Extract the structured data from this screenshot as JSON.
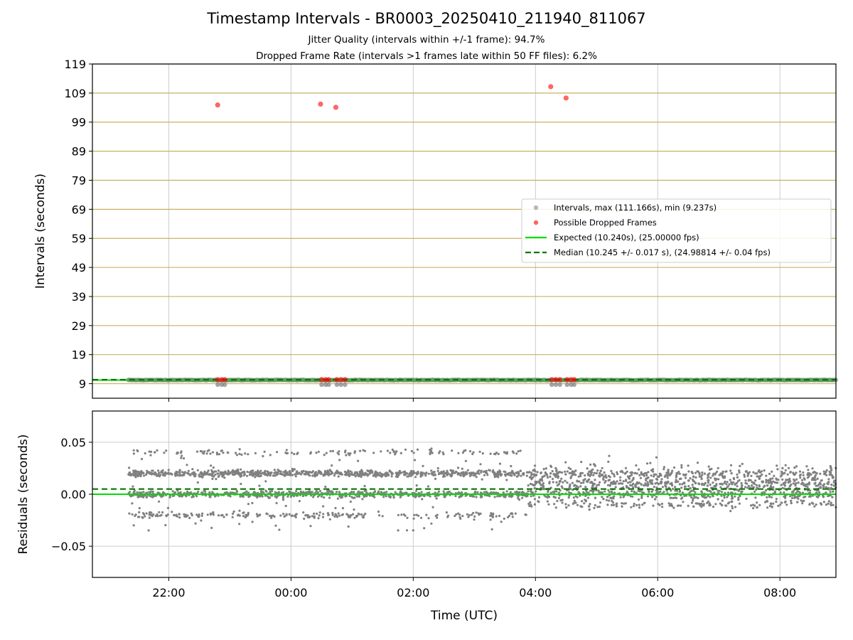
{
  "title": "Timestamp Intervals - BR0003_20250410_211940_811067",
  "subtitle1": "Jitter Quality (intervals within +/-1 frame): 94.7%",
  "subtitle2": "Dropped Frame Rate (intervals >1 frames late within 50 FF files): 6.2%",
  "colors": {
    "intervals": "#808080",
    "dropped": "#ff0000",
    "expected": "#00dd00",
    "median": "#007700",
    "hgrid_top": "#c8b060",
    "grid": "#cccccc"
  },
  "chart_data": [
    {
      "type": "scatter",
      "xlabel": "Time (UTC)",
      "ylabel": "Intervals (seconds)",
      "xlim": [
        "2025-04-10 20:45",
        "2025-04-11 08:55"
      ],
      "ylim": [
        4,
        119
      ],
      "yticks": [
        9,
        19,
        29,
        39,
        49,
        59,
        69,
        79,
        89,
        99,
        109,
        119
      ],
      "xticks": [
        "22:00",
        "00:00",
        "02:00",
        "04:00",
        "06:00",
        "08:00"
      ],
      "grid": true,
      "legend_position": "center-right",
      "series": [
        {
          "name": "Intervals, max (111.166s), min (9.237s)",
          "style": "scatter",
          "color": "#808080",
          "baseline_value": 10.24,
          "time_range": [
            "2025-04-10 21:20",
            "2025-04-11 08:55"
          ]
        },
        {
          "name": "Possible Dropped Frames",
          "style": "scatter",
          "color": "#ff0000",
          "points": [
            {
              "x": "2025-04-10 22:48",
              "y": 104.9
            },
            {
              "x": "2025-04-11 00:29",
              "y": 105.2
            },
            {
              "x": "2025-04-11 00:44",
              "y": 104.1
            },
            {
              "x": "2025-04-11 04:15",
              "y": 111.2
            },
            {
              "x": "2025-04-11 04:30",
              "y": 107.3
            },
            {
              "x": "2025-04-10 22:48",
              "y": 10.4
            },
            {
              "x": "2025-04-10 22:52",
              "y": 10.4
            },
            {
              "x": "2025-04-10 22:55",
              "y": 10.4
            },
            {
              "x": "2025-04-11 00:30",
              "y": 10.4
            },
            {
              "x": "2025-04-11 00:34",
              "y": 10.4
            },
            {
              "x": "2025-04-11 00:37",
              "y": 10.4
            },
            {
              "x": "2025-04-11 00:45",
              "y": 10.4
            },
            {
              "x": "2025-04-11 00:49",
              "y": 10.4
            },
            {
              "x": "2025-04-11 00:53",
              "y": 10.4
            },
            {
              "x": "2025-04-11 04:16",
              "y": 10.4
            },
            {
              "x": "2025-04-11 04:20",
              "y": 10.4
            },
            {
              "x": "2025-04-11 04:24",
              "y": 10.4
            },
            {
              "x": "2025-04-11 04:31",
              "y": 10.4
            },
            {
              "x": "2025-04-11 04:35",
              "y": 10.4
            },
            {
              "x": "2025-04-11 04:38",
              "y": 10.4
            }
          ]
        },
        {
          "name": "Expected (10.240s), (25.00000 fps)",
          "style": "line",
          "color": "#00dd00",
          "y": 10.24
        },
        {
          "name": "Median (10.245 +/- 0.017 s), (24.98814 +/- 0.04 fps)",
          "style": "dashed",
          "color": "#007700",
          "y": 10.245
        }
      ]
    },
    {
      "type": "scatter",
      "xlabel": "Time (UTC)",
      "ylabel": "Residuals (seconds)",
      "xlim": [
        "2025-04-10 20:45",
        "2025-04-11 08:55"
      ],
      "ylim": [
        -0.08,
        0.08
      ],
      "yticks": [
        0.05,
        0.0,
        -0.05
      ],
      "ytick_labels": [
        "0.05",
        "0.00",
        "−0.05"
      ],
      "xticks": [
        "22:00",
        "00:00",
        "02:00",
        "04:00",
        "06:00",
        "08:00"
      ],
      "grid": true,
      "series": [
        {
          "style": "scatter",
          "color": "#808080",
          "phases": [
            {
              "from": "2025-04-10 21:20",
              "to": "2025-04-11 03:52",
              "levels": [
                0.04,
                0.02,
                0.0,
                -0.02
              ],
              "noise": 0.003
            },
            {
              "from": "2025-04-11 03:52",
              "to": "2025-04-11 08:55",
              "center": 0.01,
              "spread": 0.025
            }
          ]
        },
        {
          "style": "line",
          "color": "#00dd00",
          "y": 0.0
        },
        {
          "style": "dashed",
          "color": "#007700",
          "y": 0.005
        }
      ]
    }
  ]
}
